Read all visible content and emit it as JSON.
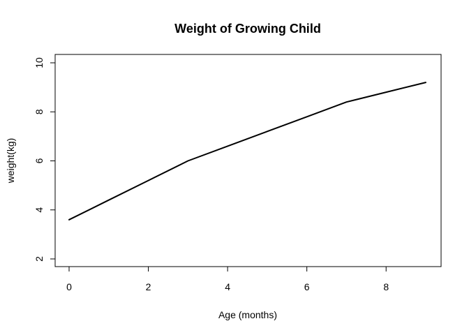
{
  "chart_data": {
    "type": "line",
    "title": "Weight of Growing Child",
    "xlabel": "Age (months)",
    "ylabel": "weight(kg)",
    "x": [
      0,
      1,
      2,
      3,
      4,
      5,
      6,
      7,
      8,
      9
    ],
    "series": [
      {
        "name": "weight",
        "values": [
          3.6,
          4.4,
          5.2,
          6.0,
          6.6,
          7.2,
          7.8,
          8.4,
          8.8,
          9.2
        ]
      }
    ],
    "xlim": [
      0,
      9
    ],
    "ylim": [
      2,
      10
    ],
    "xticks": [
      0,
      2,
      4,
      6,
      8
    ],
    "yticks": [
      2,
      4,
      6,
      8,
      10
    ],
    "xtick_labels": [
      "0",
      "2",
      "4",
      "6",
      "8"
    ],
    "ytick_labels": [
      "2",
      "4",
      "6",
      "8",
      "10"
    ],
    "grid": false,
    "legend": "none",
    "line_color": "#000000"
  }
}
